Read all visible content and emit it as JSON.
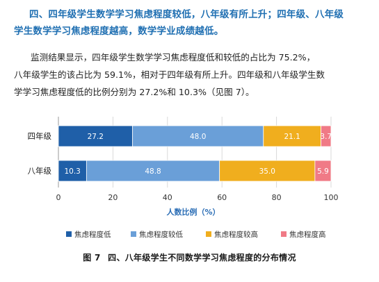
{
  "text": {
    "heading_line1": "四、四年级学生数学学习焦虑程度较低，八年级有所上升；四年级、八年级",
    "heading_line2": "学生数学学习焦虑程度越高，数学学业成绩越低。",
    "para_line1": "监测结果显示，四年级学生数学学习焦虑程度低和较低的占比为 75.2%，",
    "para_line2": "八年级学生的该占比为 59.1%，相对于四年级有所上升。四年级和八年级学生数",
    "para_line3": "学学习焦虑程度低的比例分别为 27.2%和 10.3%（见图 7）。"
  },
  "caption": {
    "number": "图 7",
    "title": "四、八年级学生不同数学学习焦虑程度的分布情况"
  },
  "chart_data": {
    "type": "bar",
    "orientation": "horizontal",
    "stacked": true,
    "categories": [
      "四年级",
      "八年级"
    ],
    "series": [
      {
        "name": "焦虑程度低",
        "values": [
          27.2,
          10.3
        ],
        "color": "#1f5fa8"
      },
      {
        "name": "焦虑程度较低",
        "values": [
          48.0,
          48.8
        ],
        "color": "#6a9fd8"
      },
      {
        "name": "焦虑程度较高",
        "values": [
          21.1,
          35.0
        ],
        "color": "#f0ae1e"
      },
      {
        "name": "焦虑程度高",
        "values": [
          3.7,
          5.9
        ],
        "color": "#f07a86"
      }
    ],
    "data_labels": [
      [
        "27.2",
        "48.0",
        "21.1",
        "3.7"
      ],
      [
        "10.3",
        "48.8",
        "35.0",
        "5.9"
      ]
    ],
    "xlabel": "人数比例（%）",
    "xlim": [
      0,
      100
    ],
    "xticks": [
      0,
      20,
      40,
      60,
      80,
      100
    ],
    "xtick_labels": [
      "0",
      "20",
      "40",
      "60",
      "80",
      "100"
    ],
    "grid": true,
    "legend": "bottom"
  }
}
